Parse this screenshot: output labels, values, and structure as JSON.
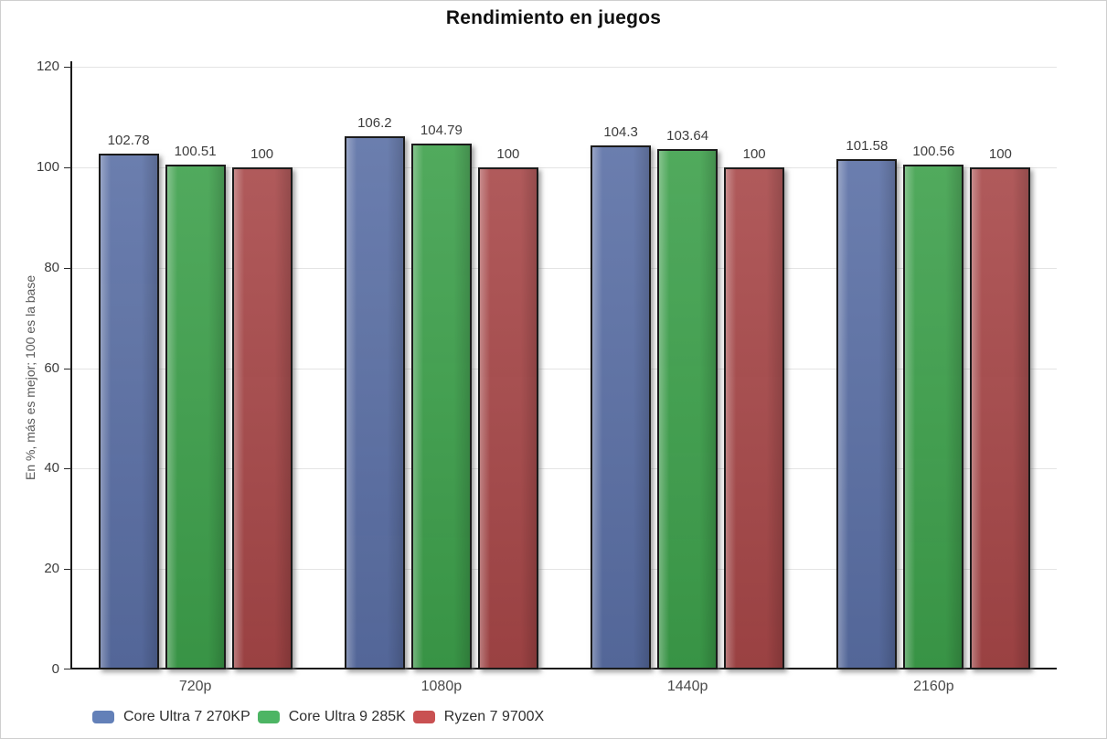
{
  "title": "Rendimiento en juegos",
  "chart_data": {
    "type": "bar",
    "title": "Rendimiento en juegos",
    "categories": [
      "720p",
      "1080p",
      "1440p",
      "2160p"
    ],
    "series": [
      {
        "name": "Core Ultra 7 270KP",
        "color": "#5a6fa5",
        "legend_color": "#6380b8",
        "values": [
          102.78,
          106.2,
          104.3,
          101.58
        ]
      },
      {
        "name": "Core Ultra 9 285K",
        "color": "#3da04b",
        "legend_color": "#4db564",
        "values": [
          100.51,
          104.79,
          103.64,
          100.56
        ]
      },
      {
        "name": "Ryzen 7 9700X",
        "color": "#a74748",
        "legend_color": "#c95152",
        "values": [
          100,
          100,
          100,
          100
        ]
      }
    ],
    "xlabel": "",
    "ylabel": "En %, más es mejor; 100 es la base",
    "ylim": [
      0,
      120
    ],
    "yticks": [
      0,
      20,
      40,
      60,
      80,
      100,
      120
    ],
    "grid": true,
    "value_labels": true,
    "legend_position": "bottom-left",
    "axis_color": "#1a1a1a",
    "grid_color": "#e4e4e4"
  }
}
